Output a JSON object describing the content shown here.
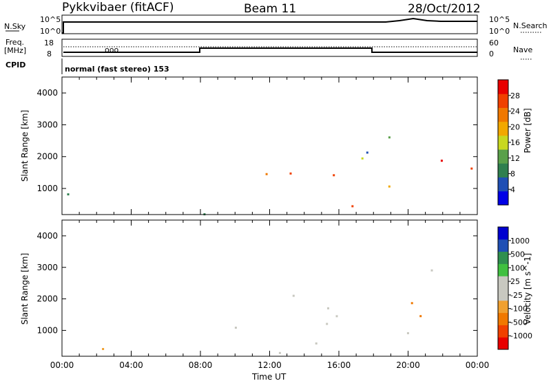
{
  "header": {
    "station": "Pykkvibaer (fitACF)",
    "beam": "Beam 11",
    "date": "28/Oct/2012"
  },
  "top_panels": {
    "nsky_label": "N.Sky",
    "nsky_ticks": [
      "10^5",
      "10^0"
    ],
    "nsearch_label": "N.Search",
    "nsearch_ticks": [
      "10^5",
      "10^0"
    ],
    "freq_label": "Freq.",
    "freq_unit": "[MHz]",
    "freq_ticks": [
      "18",
      "8"
    ],
    "nave_label": "Nave",
    "nave_ticks": [
      "60",
      "0"
    ],
    "cpid_label": "CPID",
    "cpid_text": "normal (fast stereo) 153"
  },
  "colors": {
    "power": [
      "#0000e6",
      "#1f4fb4",
      "#2f7f4f",
      "#5aa04a",
      "#c8d820",
      "#f2a800",
      "#f07800",
      "#f04000",
      "#e80000"
    ],
    "velocity": [
      "#e80000",
      "#f04000",
      "#f07800",
      "#f0a030",
      "#c8c8c0",
      "#c8c8c0",
      "#40c040",
      "#2f8f4f",
      "#1f4fb4",
      "#0000d0"
    ]
  },
  "chart_data": [
    {
      "type": "heatmap",
      "title": "Power",
      "ylabel": "Slant Range [km]",
      "xlabel": "",
      "colorbar_label": "Power [dB]",
      "colorbar_ticks": [
        "28",
        "24",
        "20",
        "16",
        "12",
        "8",
        "4"
      ],
      "ylim": [
        180,
        4500
      ],
      "y_ticks": [
        "4000",
        "3000",
        "2000",
        "1000"
      ],
      "x_ticks": [
        "00:00",
        "04:00",
        "08:00",
        "12:00",
        "16:00",
        "20:00",
        "00:00"
      ],
      "xlim_hours": [
        0,
        24
      ]
    },
    {
      "type": "heatmap",
      "title": "Velocity",
      "ylabel": "Slant Range [km]",
      "xlabel": "Time UT",
      "colorbar_label": "Velocity [m s^-1]",
      "colorbar_ticks": [
        "1000",
        "500",
        "100",
        "25",
        "-25",
        "-100",
        "-500",
        "-1000"
      ],
      "ylim": [
        180,
        4500
      ],
      "y_ticks": [
        "4000",
        "3000",
        "2000",
        "1000"
      ],
      "x_ticks": [
        "00:00",
        "04:00",
        "08:00",
        "12:00",
        "16:00",
        "20:00",
        "00:00"
      ],
      "xlim_hours": [
        0,
        24
      ]
    }
  ]
}
